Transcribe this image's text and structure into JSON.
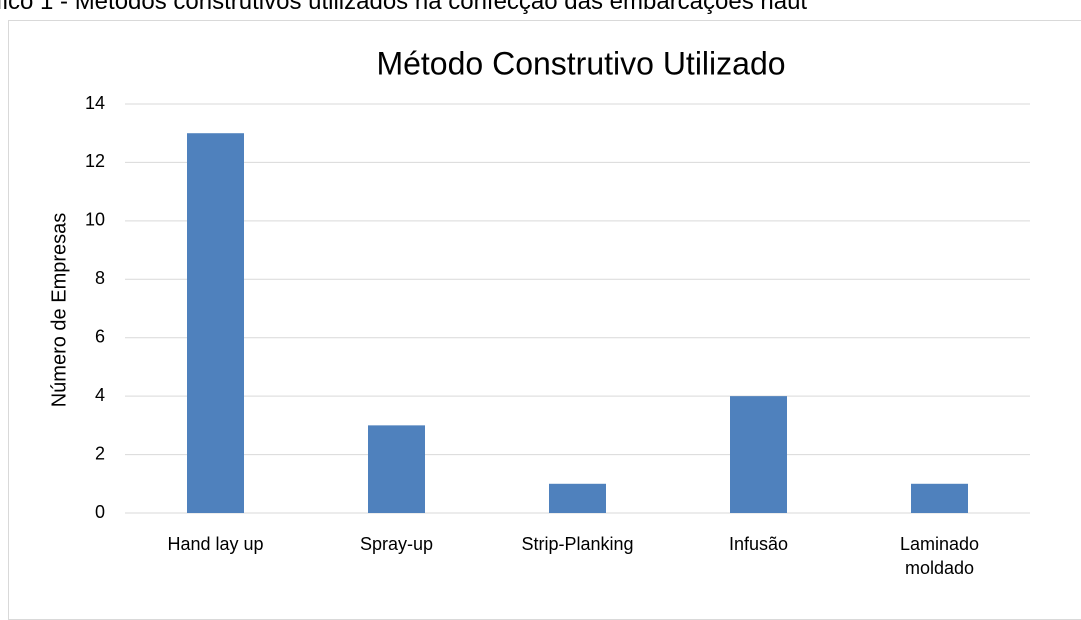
{
  "caption": "fico 1 - Métodos construtivos utilizados na confecção das embarcações náut",
  "chart_data": {
    "type": "bar",
    "title": "Método Construtivo Utilizado",
    "y_label": "Número de Empresas",
    "categories": [
      "Hand lay up",
      "Spray-up",
      "Strip-Planking",
      "Infusão",
      "Laminado moldado"
    ],
    "values": [
      13,
      3,
      1,
      4,
      1
    ],
    "color": "#4f81bd",
    "ylim": [
      0,
      14
    ],
    "yticks": [
      0,
      2,
      4,
      6,
      8,
      10,
      12,
      14
    ],
    "grid": true
  }
}
